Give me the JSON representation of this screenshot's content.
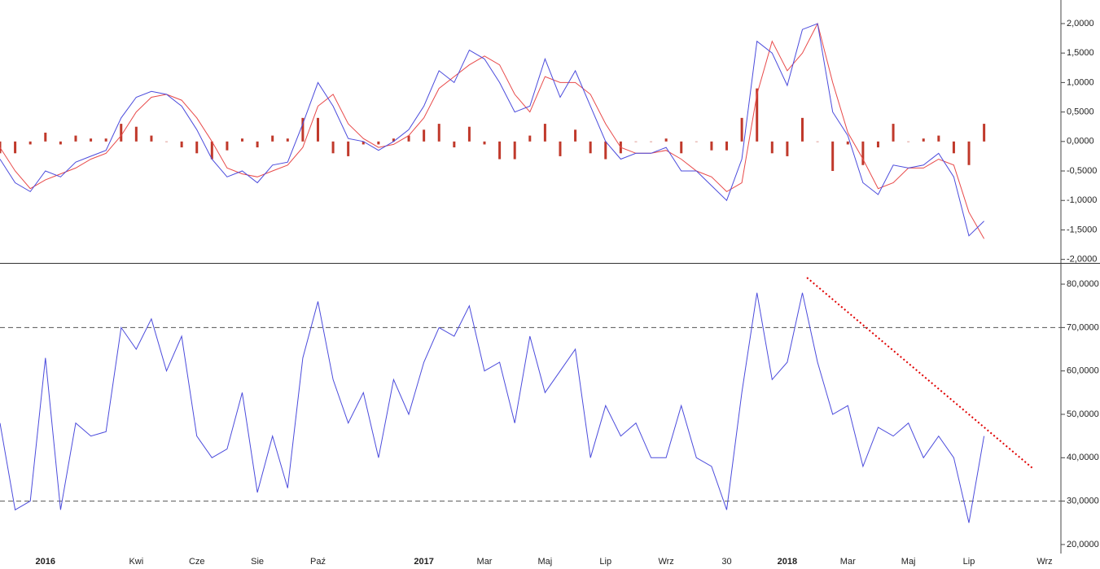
{
  "chart_data": [
    {
      "type": "line",
      "ylim": [
        -2.06,
        2.4
      ],
      "yticks": [
        {
          "value": 2,
          "label": "2,0000"
        },
        {
          "value": 1.5,
          "label": "1,5000"
        },
        {
          "value": 1,
          "label": "1,0000"
        },
        {
          "value": 0.5,
          "label": "0,5000"
        },
        {
          "value": 0,
          "label": "0,0000"
        },
        {
          "value": -0.5,
          "label": "-0,5000"
        },
        {
          "value": -1,
          "label": "-1,0000"
        },
        {
          "value": -1.5,
          "label": "-1,5000"
        },
        {
          "value": -2,
          "label": "-2,0000"
        }
      ],
      "series": [
        {
          "type": "bar",
          "color": "#c0392b",
          "values": [
            -0.2,
            -0.2,
            -0.05,
            0.15,
            -0.05,
            0.1,
            0.05,
            0.05,
            0.3,
            0.25,
            0.1,
            0,
            -0.1,
            -0.2,
            -0.3,
            -0.15,
            0.05,
            -0.1,
            0.1,
            0.05,
            0.4,
            0.4,
            -0.2,
            -0.25,
            -0.05,
            -0.05,
            0.05,
            0.1,
            0.2,
            0.3,
            -0.1,
            0.25,
            -0.05,
            -0.3,
            -0.3,
            0.1,
            0.3,
            -0.25,
            0.2,
            -0.2,
            -0.3,
            -0.2,
            0,
            0,
            0.05,
            -0.2,
            0,
            -0.15,
            -0.15,
            0.4,
            0.9,
            -0.2,
            -0.25,
            0.4,
            0,
            -0.5,
            -0.05,
            -0.4,
            -0.1,
            0.3,
            0,
            0.05,
            0.1,
            -0.2,
            -0.4,
            0.3,
            null,
            null,
            null,
            null
          ]
        },
        {
          "type": "line",
          "color": "#e84a4a",
          "values": [
            -0.1,
            -0.5,
            -0.8,
            -0.65,
            -0.55,
            -0.45,
            -0.3,
            -0.2,
            0.1,
            0.5,
            0.75,
            0.8,
            0.7,
            0.4,
            0.0,
            -0.45,
            -0.55,
            -0.6,
            -0.5,
            -0.4,
            -0.1,
            0.6,
            0.8,
            0.3,
            0.05,
            -0.1,
            -0.05,
            0.1,
            0.4,
            0.9,
            1.1,
            1.3,
            1.45,
            1.3,
            0.8,
            0.5,
            1.1,
            1.0,
            1.0,
            0.8,
            0.3,
            -0.1,
            -0.2,
            -0.2,
            -0.15,
            -0.3,
            -0.5,
            -0.6,
            -0.85,
            -0.7,
            0.8,
            1.7,
            1.2,
            1.5,
            2.0,
            1.0,
            0.15,
            -0.3,
            -0.8,
            -0.7,
            -0.45,
            -0.45,
            -0.3,
            -0.4,
            -1.2,
            -1.65,
            null,
            null,
            null,
            null
          ]
        },
        {
          "type": "line",
          "color": "#4b4bdc",
          "values": [
            -0.3,
            -0.7,
            -0.85,
            -0.5,
            -0.6,
            -0.35,
            -0.25,
            -0.15,
            0.4,
            0.75,
            0.85,
            0.8,
            0.6,
            0.2,
            -0.3,
            -0.6,
            -0.5,
            -0.7,
            -0.4,
            -0.35,
            0.3,
            1.0,
            0.6,
            0.05,
            0.0,
            -0.15,
            0.0,
            0.2,
            0.6,
            1.2,
            1.0,
            1.55,
            1.4,
            1.0,
            0.5,
            0.6,
            1.4,
            0.75,
            1.2,
            0.6,
            0.0,
            -0.3,
            -0.2,
            -0.2,
            -0.1,
            -0.5,
            -0.5,
            -0.75,
            -1.0,
            -0.3,
            1.7,
            1.5,
            0.95,
            1.9,
            2.0,
            0.5,
            0.1,
            -0.7,
            -0.9,
            -0.4,
            -0.45,
            -0.4,
            -0.2,
            -0.6,
            -1.6,
            -1.35,
            null,
            null,
            null,
            null
          ]
        }
      ]
    },
    {
      "type": "line",
      "categories": [
        null,
        null,
        null,
        "2016",
        null,
        null,
        null,
        null,
        null,
        "Kwi",
        null,
        null,
        null,
        "Cze",
        null,
        null,
        null,
        "Sie",
        null,
        null,
        null,
        "Paź",
        null,
        null,
        null,
        null,
        null,
        null,
        "2017",
        null,
        null,
        null,
        "Mar",
        null,
        null,
        null,
        "Maj",
        null,
        null,
        null,
        "Lip",
        null,
        null,
        null,
        "Wrz",
        null,
        null,
        null,
        "30",
        null,
        null,
        null,
        "2018",
        null,
        null,
        null,
        "Mar",
        null,
        null,
        null,
        "Maj",
        null,
        null,
        null,
        "Lip",
        null,
        null,
        null,
        null,
        "Wrz"
      ],
      "ylim": [
        18.3,
        84.7
      ],
      "yticks": [
        {
          "value": 80,
          "label": "80,0000"
        },
        {
          "value": 70,
          "label": "70,0000"
        },
        {
          "value": 60,
          "label": "60,0000"
        },
        {
          "value": 50,
          "label": "50,0000"
        },
        {
          "value": 40,
          "label": "40,0000"
        },
        {
          "value": 30,
          "label": "30,0000"
        },
        {
          "value": 20,
          "label": "20,0000"
        }
      ],
      "hlines": [
        70,
        30
      ],
      "trendline": {
        "x": [
          53.3,
          68.2
        ],
        "y": [
          81.5,
          37.6
        ],
        "color": "#e00000"
      },
      "series": [
        {
          "type": "line",
          "color": "#4b4bdc",
          "values": [
            48,
            28,
            30,
            63,
            28,
            48,
            45,
            46,
            70,
            65,
            72,
            60,
            68,
            45,
            40,
            42,
            55,
            32,
            45,
            33,
            63,
            76,
            58,
            48,
            55,
            40,
            58,
            50,
            62,
            70,
            68,
            75,
            60,
            62,
            48,
            68,
            55,
            60,
            65,
            40,
            52,
            45,
            48,
            40,
            40,
            52,
            40,
            38,
            28,
            55,
            78,
            58,
            62,
            78,
            62,
            50,
            52,
            38,
            47,
            45,
            48,
            40,
            45,
            40,
            25,
            45,
            null,
            null,
            null,
            null
          ]
        }
      ]
    }
  ]
}
